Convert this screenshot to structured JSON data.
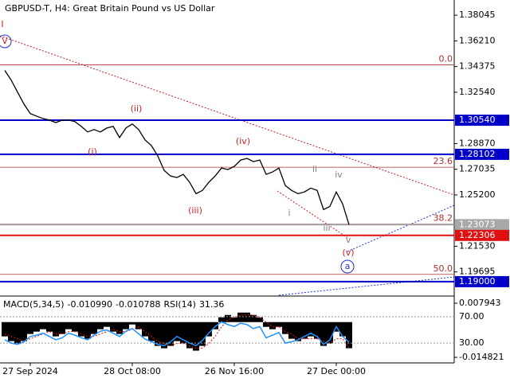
{
  "chart_data": [
    {
      "type": "line",
      "title": "GBPUSD-T, H4:  Great Britain Pound vs US Dollar",
      "color": "#000000",
      "categories": [
        null,
        null,
        null,
        null,
        "27 Sep 2024",
        null,
        null,
        null,
        null,
        null,
        null,
        null,
        null,
        null,
        null,
        null,
        null,
        null,
        null,
        null,
        "28 Oct 08:00",
        null,
        null,
        null,
        null,
        null,
        null,
        null,
        null,
        null,
        null,
        null,
        null,
        null,
        null,
        null,
        "26 Nov 16:00",
        null,
        null,
        null,
        null,
        null,
        null,
        null,
        null,
        null,
        null,
        null,
        null,
        null,
        null,
        null,
        "27 Dec 00:00",
        null,
        null
      ],
      "values": [
        1.341,
        1.3341,
        1.3255,
        1.317,
        1.3101,
        1.3083,
        1.3066,
        1.3055,
        1.3037,
        1.3055,
        1.3055,
        1.3044,
        1.301,
        1.297,
        1.2987,
        1.297,
        1.2998,
        1.301,
        1.293,
        1.2998,
        1.3027,
        1.2987,
        1.2913,
        1.2873,
        1.2798,
        1.2695,
        1.2655,
        1.2644,
        1.2667,
        1.261,
        1.2529,
        1.2552,
        1.261,
        1.2655,
        1.2712,
        1.2701,
        1.2724,
        1.2769,
        1.2781,
        1.2758,
        1.2769,
        1.2667,
        1.2684,
        1.2712,
        1.2587,
        1.2552,
        1.2529,
        1.2541,
        1.2569,
        1.2552,
        1.2415,
        1.2438,
        1.2541,
        1.2455,
        1.23073
      ],
      "ylim": [
        1.17971,
        1.39132
      ],
      "yticks": [
        1.38045,
        {
          "value": 1.3621,
          "label": "1.36210"
        },
        1.34375,
        {
          "value": 1.3254,
          "label": "1.32540"
        },
        {
          "value": 1.2887,
          "label": "1.28870"
        },
        1.27035,
        {
          "value": 1.252,
          "label": "1.25200"
        },
        {
          "value": 1.2153,
          "label": "1.21530"
        },
        1.19695
      ],
      "levels": [
        {
          "value": 1.3054,
          "label": "1.30540",
          "color": "#0000c8"
        },
        {
          "value": 1.28102,
          "label": "1.28102",
          "color": "#0000c8"
        },
        {
          "value": 1.23073,
          "label": "1.23073",
          "color": "#a8a8a8"
        },
        {
          "value": 1.22306,
          "label": "1.22306",
          "color": "#e01010"
        },
        {
          "value": 1.19,
          "label": "1.19000",
          "color": "#0000c8"
        }
      ],
      "fib_levels": [
        {
          "label": "0.0",
          "price": 1.345
        },
        {
          "label": "23.6",
          "price": 1.2718
        },
        {
          "label": "38.2",
          "price": 1.2312
        },
        {
          "label": "50.0",
          "price": 1.1952
        }
      ],
      "annotations": [
        "(i)",
        "(ii)",
        "(iii)",
        "(iv)",
        "(v)",
        "i",
        "ii",
        "iii",
        "iv",
        "v",
        "a",
        "I",
        "V"
      ]
    },
    {
      "type": "macd",
      "title": "MACD(5,34,5)",
      "main_value": {
        "value": -0.01099,
        "label": "-0.010990"
      },
      "signal_value": {
        "value": -0.010788,
        "label": "-0.010788"
      },
      "rsi_title": "RSI(14)",
      "rsi_value": 31.36,
      "histogram": [
        -0.006,
        -0.008,
        -0.009,
        -0.008,
        -0.005,
        -0.004,
        -0.003,
        -0.004,
        -0.006,
        -0.005,
        -0.003,
        -0.004,
        -0.006,
        -0.007,
        -0.005,
        -0.003,
        -0.002,
        -0.004,
        -0.005,
        -0.003,
        -0.001,
        -0.003,
        -0.006,
        -0.008,
        -0.01,
        -0.011,
        -0.01,
        -0.008,
        -0.009,
        -0.011,
        -0.012,
        -0.01,
        -0.006,
        -0.003,
        0.002,
        0.003,
        0.002,
        0.004,
        0.004,
        0.003,
        0.002,
        -0.002,
        -0.003,
        -0.002,
        -0.005,
        -0.007,
        -0.008,
        -0.007,
        -0.006,
        -0.007,
        -0.01,
        -0.009,
        -0.004,
        -0.006,
        -0.01099
      ],
      "signal": [
        -0.005,
        -0.006,
        -0.007,
        -0.008,
        -0.007,
        -0.006,
        -0.005,
        -0.004,
        -0.005,
        -0.005,
        -0.004,
        -0.004,
        -0.005,
        -0.006,
        -0.006,
        -0.005,
        -0.004,
        -0.003,
        -0.004,
        -0.004,
        -0.003,
        -0.002,
        -0.004,
        -0.006,
        -0.008,
        -0.009,
        -0.01,
        -0.009,
        -0.009,
        -0.01,
        -0.011,
        -0.011,
        -0.009,
        -0.006,
        -0.002,
        0.001,
        0.002,
        0.003,
        0.003,
        0.003,
        0.002,
        0.0,
        -0.002,
        -0.002,
        -0.004,
        -0.005,
        -0.007,
        -0.007,
        -0.007,
        -0.007,
        -0.008,
        -0.009,
        -0.007,
        -0.007,
        -0.010788
      ],
      "rsi": [
        35,
        30,
        28,
        32,
        40,
        42,
        45,
        40,
        35,
        38,
        45,
        42,
        38,
        35,
        42,
        48,
        50,
        45,
        40,
        48,
        52,
        44,
        36,
        32,
        28,
        26,
        32,
        40,
        35,
        30,
        26,
        34,
        45,
        55,
        62,
        58,
        55,
        60,
        58,
        52,
        55,
        38,
        42,
        46,
        30,
        32,
        35,
        40,
        45,
        40,
        28,
        35,
        55,
        40,
        31.36
      ],
      "ylim": [
        -0.01716,
        0.01062
      ],
      "yticks": [
        0.007943,
        -0.014821
      ],
      "rsi_ylim": [
        0,
        100
      ],
      "rsi_ticks": [
        {
          "value": 70,
          "label": "70.00"
        },
        {
          "value": 30,
          "label": "30.00"
        }
      ],
      "colors": {
        "histogram": "#000000",
        "signal": "#e01010",
        "rsi": "#1e90ff"
      }
    }
  ]
}
